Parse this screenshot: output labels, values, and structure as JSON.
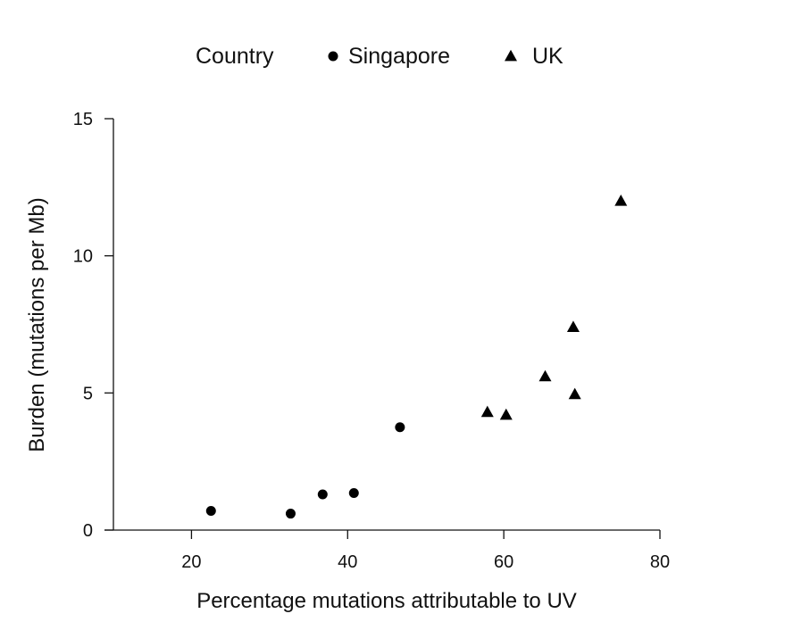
{
  "chart_data": {
    "type": "scatter",
    "xlabel": "Percentage mutations attributable to UV",
    "ylabel": "Burden (mutations per Mb)",
    "xlim": [
      10,
      80
    ],
    "ylim": [
      0,
      15
    ],
    "xticks": [
      20,
      40,
      60,
      80
    ],
    "yticks": [
      0,
      5,
      10,
      15
    ],
    "grid": false,
    "legend": {
      "title": "Country",
      "placement": "top",
      "entries": [
        {
          "label": "Singapore",
          "marker": "circle"
        },
        {
          "label": "UK",
          "marker": "triangle"
        }
      ]
    },
    "series": [
      {
        "name": "Singapore",
        "marker": "circle",
        "color": "#000000",
        "points": [
          {
            "x": 22.5,
            "y": 0.7
          },
          {
            "x": 32.7,
            "y": 0.6
          },
          {
            "x": 36.8,
            "y": 1.3
          },
          {
            "x": 40.8,
            "y": 1.35
          },
          {
            "x": 46.7,
            "y": 3.75
          }
        ]
      },
      {
        "name": "UK",
        "marker": "triangle",
        "color": "#000000",
        "points": [
          {
            "x": 57.9,
            "y": 4.3
          },
          {
            "x": 60.3,
            "y": 4.2
          },
          {
            "x": 65.3,
            "y": 5.6
          },
          {
            "x": 68.9,
            "y": 7.4
          },
          {
            "x": 69.1,
            "y": 4.95
          },
          {
            "x": 75.0,
            "y": 12.0
          }
        ]
      }
    ]
  }
}
